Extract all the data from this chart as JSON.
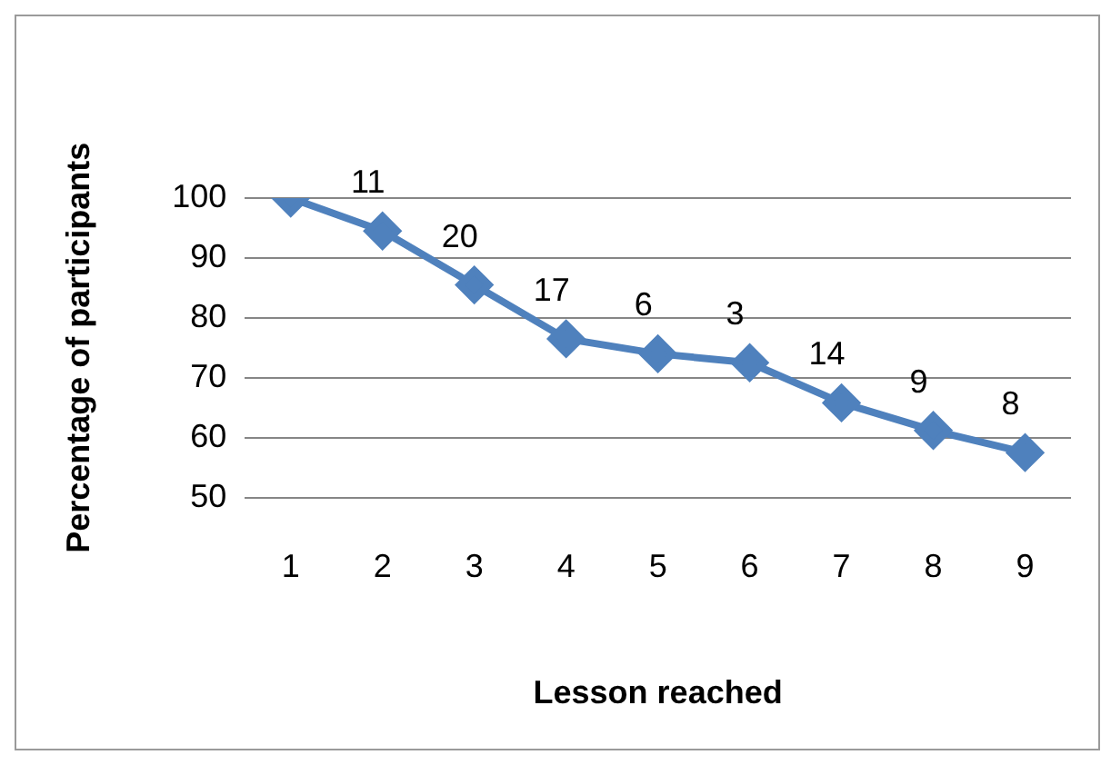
{
  "chart_data": {
    "type": "line",
    "xlabel": "Lesson reached",
    "ylabel": "Percentage of participants",
    "categories": [
      "1",
      "2",
      "3",
      "4",
      "5",
      "6",
      "7",
      "8",
      "9"
    ],
    "series": [
      {
        "color": "#4f81bd",
        "values": [
          100,
          94.5,
          85.5,
          76.5,
          74,
          72.5,
          65.8,
          61.2,
          57.5
        ]
      }
    ],
    "annotations": [
      {
        "text": "11",
        "x": "2",
        "y": 94.5
      },
      {
        "text": "20",
        "x": "3",
        "y": 85.5
      },
      {
        "text": "17",
        "x": "4",
        "y": 76.5
      },
      {
        "text": "6",
        "x": "5",
        "y": 74
      },
      {
        "text": "3",
        "x": "6",
        "y": 72.5
      },
      {
        "text": "14",
        "x": "7",
        "y": 65.8
      },
      {
        "text": "9",
        "x": "8",
        "y": 61.2
      },
      {
        "text": "8",
        "x": "9",
        "y": 57.5
      }
    ],
    "ylim": [
      50,
      100
    ],
    "yticks": [
      50,
      60,
      70,
      80,
      90,
      100
    ],
    "grid": "y",
    "legend": false,
    "marker": "diamond",
    "line_style": "solid"
  }
}
